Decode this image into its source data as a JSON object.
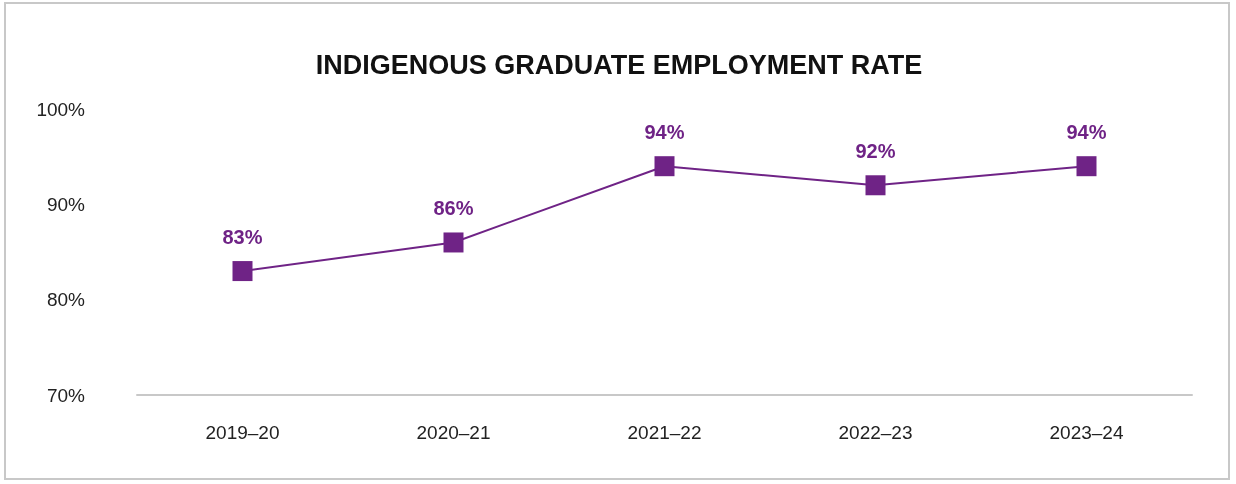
{
  "chart_data": {
    "type": "line",
    "title": "INDIGENOUS GRADUATE EMPLOYMENT RATE",
    "categories": [
      "2019–20",
      "2020–21",
      "2021–22",
      "2022–23",
      "2023–24"
    ],
    "series": [
      {
        "color": "#6f2386",
        "values": [
          83,
          86,
          94,
          92,
          94
        ],
        "value_labels": [
          "83%",
          "86%",
          "94%",
          "92%",
          "94%"
        ]
      }
    ],
    "ylim": [
      70,
      100
    ],
    "yticks": [
      {
        "value": 70,
        "label": "70%"
      },
      {
        "value": 80,
        "label": "80%"
      },
      {
        "value": 90,
        "label": "90%"
      },
      {
        "value": 100,
        "label": "100%"
      }
    ],
    "grid": false,
    "marker": "square",
    "line_style": "solid"
  }
}
